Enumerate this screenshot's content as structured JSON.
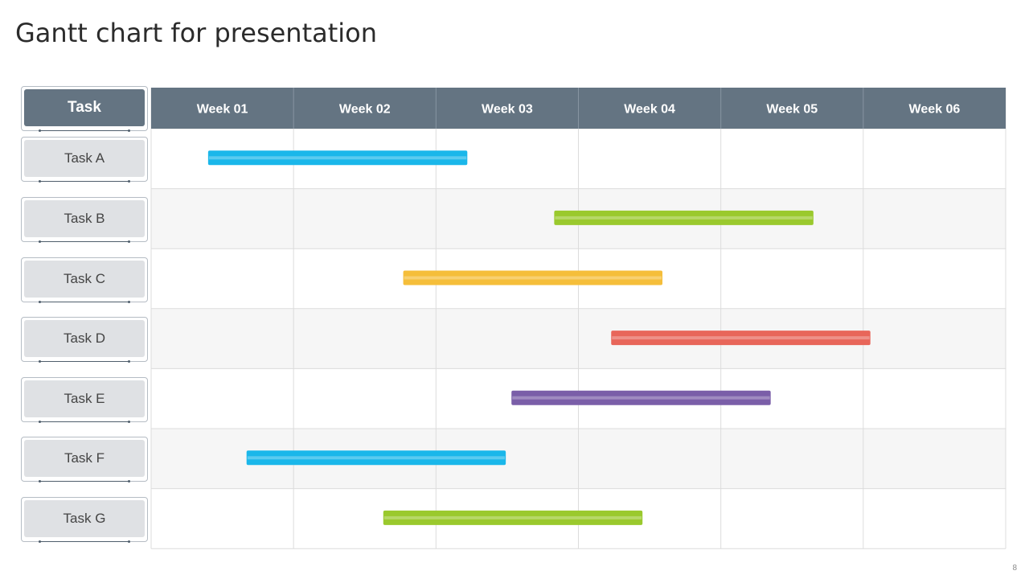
{
  "title": "Gantt chart for presentation",
  "slide_number": "8",
  "chart_data": {
    "type": "bar",
    "subtype": "gantt",
    "task_header": "Task",
    "weeks": [
      "Week 01",
      "Week 02",
      "Week 03",
      "Week 04",
      "Week 05",
      "Week 06"
    ],
    "tasks": [
      {
        "name": "Task A",
        "start": 0.4,
        "end": 2.22,
        "color": "#1ab7ea"
      },
      {
        "name": "Task B",
        "start": 2.83,
        "end": 4.65,
        "color": "#9ac92d"
      },
      {
        "name": "Task C",
        "start": 1.77,
        "end": 3.59,
        "color": "#f5be3a"
      },
      {
        "name": "Task D",
        "start": 3.23,
        "end": 5.05,
        "color": "#e8665a"
      },
      {
        "name": "Task E",
        "start": 2.53,
        "end": 4.35,
        "color": "#7a5ea8"
      },
      {
        "name": "Task F",
        "start": 0.67,
        "end": 2.49,
        "color": "#1ab7ea"
      },
      {
        "name": "Task G",
        "start": 1.63,
        "end": 3.45,
        "color": "#9ac92d"
      }
    ],
    "header_color": "#647482",
    "grid": true
  }
}
